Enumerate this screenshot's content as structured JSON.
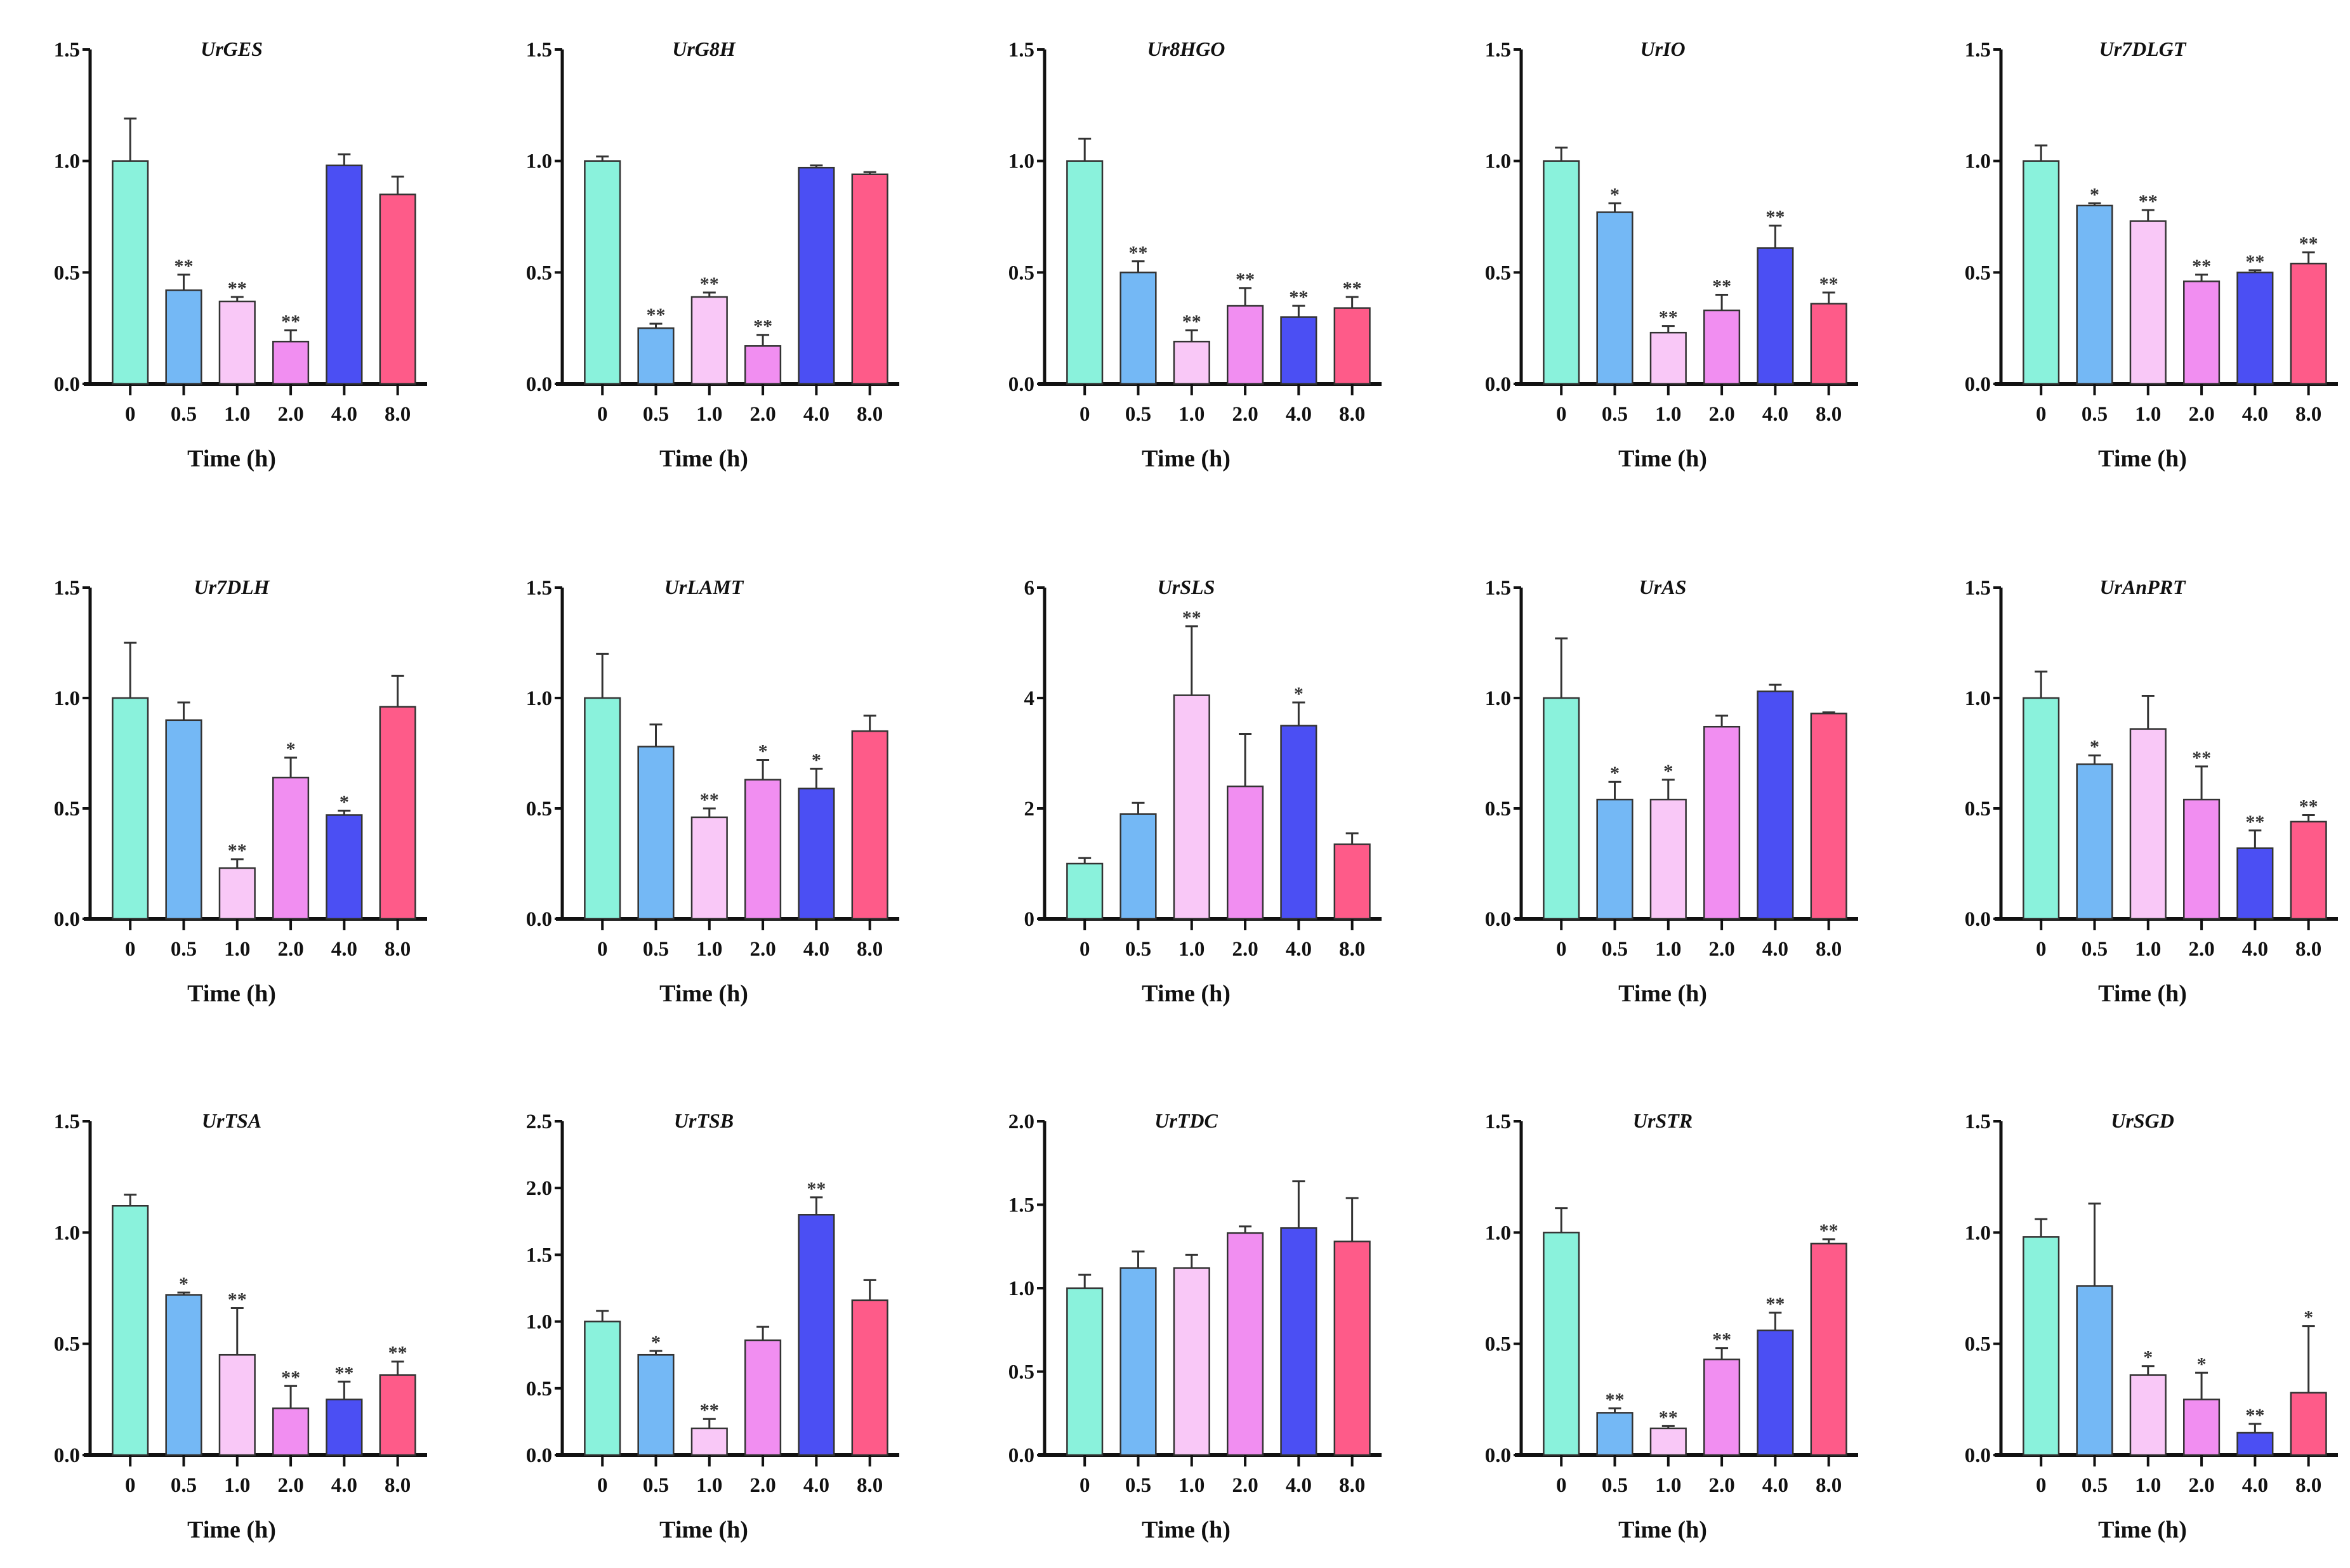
{
  "colors": [
    "#8af2dc",
    "#74b8f5",
    "#f9c8f7",
    "#f18ef1",
    "#4b4ff3",
    "#fe5b89"
  ],
  "chart_data": {
    "type": "bar",
    "categories": [
      "0",
      "0.5",
      "1.0",
      "2.0",
      "4.0",
      "8.0"
    ],
    "xlabel": "Time (h)",
    "error_bars": true,
    "panels": [
      {
        "title": "UrGES",
        "ylim": [
          0,
          1.5
        ],
        "yticks": [
          "0.0",
          "0.5",
          "1.0",
          "1.5"
        ],
        "values": [
          1.0,
          0.42,
          0.37,
          0.19,
          0.98,
          0.85
        ],
        "errors": [
          0.19,
          0.07,
          0.02,
          0.05,
          0.05,
          0.08
        ],
        "sig": [
          "",
          "**",
          "**",
          "**",
          "",
          ""
        ]
      },
      {
        "title": "UrG8H",
        "ylim": [
          0,
          1.5
        ],
        "yticks": [
          "0.0",
          "0.5",
          "1.0",
          "1.5"
        ],
        "values": [
          1.0,
          0.25,
          0.39,
          0.17,
          0.97,
          0.94
        ],
        "errors": [
          0.02,
          0.02,
          0.02,
          0.05,
          0.01,
          0.01
        ],
        "sig": [
          "",
          "**",
          "**",
          "**",
          "",
          ""
        ]
      },
      {
        "title": "Ur8HGO",
        "ylim": [
          0,
          1.5
        ],
        "yticks": [
          "0.0",
          "0.5",
          "1.0",
          "1.5"
        ],
        "values": [
          1.0,
          0.5,
          0.19,
          0.35,
          0.3,
          0.34
        ],
        "errors": [
          0.1,
          0.05,
          0.05,
          0.08,
          0.05,
          0.05
        ],
        "sig": [
          "",
          "**",
          "**",
          "**",
          "**",
          "**"
        ]
      },
      {
        "title": "UrIO",
        "ylim": [
          0,
          1.5
        ],
        "yticks": [
          "0.0",
          "0.5",
          "1.0",
          "1.5"
        ],
        "values": [
          1.0,
          0.77,
          0.23,
          0.33,
          0.61,
          0.36
        ],
        "errors": [
          0.06,
          0.04,
          0.03,
          0.07,
          0.1,
          0.05
        ],
        "sig": [
          "",
          "*",
          "**",
          "**",
          "**",
          "**"
        ]
      },
      {
        "title": "Ur7DLGT",
        "ylim": [
          0,
          1.5
        ],
        "yticks": [
          "0.0",
          "0.5",
          "1.0",
          "1.5"
        ],
        "values": [
          1.0,
          0.8,
          0.73,
          0.46,
          0.5,
          0.54
        ],
        "errors": [
          0.07,
          0.01,
          0.05,
          0.03,
          0.01,
          0.05
        ],
        "sig": [
          "",
          "*",
          "**",
          "**",
          "**",
          "**"
        ]
      },
      {
        "title": "Ur7DLH",
        "ylim": [
          0,
          1.5
        ],
        "yticks": [
          "0.0",
          "0.5",
          "1.0",
          "1.5"
        ],
        "values": [
          1.0,
          0.9,
          0.23,
          0.64,
          0.47,
          0.96
        ],
        "errors": [
          0.25,
          0.08,
          0.04,
          0.09,
          0.02,
          0.14
        ],
        "sig": [
          "",
          "",
          "**",
          "*",
          "*",
          ""
        ]
      },
      {
        "title": "UrLAMT",
        "ylim": [
          0,
          1.5
        ],
        "yticks": [
          "0.0",
          "0.5",
          "1.0",
          "1.5"
        ],
        "values": [
          1.0,
          0.78,
          0.46,
          0.63,
          0.59,
          0.85
        ],
        "errors": [
          0.2,
          0.1,
          0.04,
          0.09,
          0.09,
          0.07
        ],
        "sig": [
          "",
          "",
          "**",
          "*",
          "*",
          ""
        ]
      },
      {
        "title": "UrSLS",
        "ylim": [
          0,
          6
        ],
        "yticks": [
          "0",
          "2",
          "4",
          "6"
        ],
        "values": [
          1.0,
          1.9,
          4.05,
          2.4,
          3.5,
          1.35
        ],
        "errors": [
          0.1,
          0.2,
          1.25,
          0.95,
          0.42,
          0.2
        ],
        "sig": [
          "",
          "",
          "**",
          "",
          "*",
          ""
        ]
      },
      {
        "title": "UrAS",
        "ylim": [
          0,
          1.5
        ],
        "yticks": [
          "0.0",
          "0.5",
          "1.0",
          "1.5"
        ],
        "values": [
          1.0,
          0.54,
          0.54,
          0.87,
          1.03,
          0.93
        ],
        "errors": [
          0.27,
          0.08,
          0.09,
          0.05,
          0.03,
          0.005
        ],
        "sig": [
          "",
          "*",
          "*",
          "",
          "",
          ""
        ]
      },
      {
        "title": "UrAnPRT",
        "ylim": [
          0,
          1.5
        ],
        "yticks": [
          "0.0",
          "0.5",
          "1.0",
          "1.5"
        ],
        "values": [
          1.0,
          0.7,
          0.86,
          0.54,
          0.32,
          0.44
        ],
        "errors": [
          0.12,
          0.04,
          0.15,
          0.15,
          0.08,
          0.03
        ],
        "sig": [
          "",
          "*",
          "",
          "**",
          "**",
          "**"
        ]
      },
      {
        "title": "UrTSA",
        "ylim": [
          0,
          1.5
        ],
        "yticks": [
          "0.0",
          "0.5",
          "1.0",
          "1.5"
        ],
        "values": [
          1.12,
          0.72,
          0.45,
          0.21,
          0.25,
          0.36
        ],
        "errors": [
          0.05,
          0.01,
          0.21,
          0.1,
          0.08,
          0.06
        ],
        "sig": [
          "",
          "*",
          "**",
          "**",
          "**",
          "**"
        ]
      },
      {
        "title": "UrTSB",
        "ylim": [
          0,
          2.5
        ],
        "yticks": [
          "0.0",
          "0.5",
          "1.0",
          "1.5",
          "2.0",
          "2.5"
        ],
        "values": [
          1.0,
          0.75,
          0.2,
          0.86,
          1.8,
          1.16
        ],
        "errors": [
          0.08,
          0.03,
          0.07,
          0.1,
          0.13,
          0.15
        ],
        "sig": [
          "",
          "*",
          "**",
          "",
          "**",
          ""
        ]
      },
      {
        "title": "UrTDC",
        "ylim": [
          0,
          2.0
        ],
        "yticks": [
          "0.0",
          "0.5",
          "1.0",
          "1.5",
          "2.0"
        ],
        "values": [
          1.0,
          1.12,
          1.12,
          1.33,
          1.36,
          1.28
        ],
        "errors": [
          0.08,
          0.1,
          0.08,
          0.04,
          0.28,
          0.26
        ],
        "sig": [
          "",
          "",
          "",
          "",
          "",
          ""
        ]
      },
      {
        "title": "UrSTR",
        "ylim": [
          0,
          1.5
        ],
        "yticks": [
          "0.0",
          "0.5",
          "1.0",
          "1.5"
        ],
        "values": [
          1.0,
          0.19,
          0.12,
          0.43,
          0.56,
          0.95
        ],
        "errors": [
          0.11,
          0.02,
          0.01,
          0.05,
          0.08,
          0.02
        ],
        "sig": [
          "",
          "**",
          "**",
          "**",
          "**",
          "**"
        ]
      },
      {
        "title": "UrSGD",
        "ylim": [
          0,
          1.5
        ],
        "yticks": [
          "0.0",
          "0.5",
          "1.0",
          "1.5"
        ],
        "values": [
          0.98,
          0.76,
          0.36,
          0.25,
          0.1,
          0.28
        ],
        "errors": [
          0.08,
          0.37,
          0.04,
          0.12,
          0.04,
          0.3
        ],
        "sig": [
          "",
          "",
          "*",
          "*",
          "**",
          "*"
        ]
      }
    ]
  }
}
